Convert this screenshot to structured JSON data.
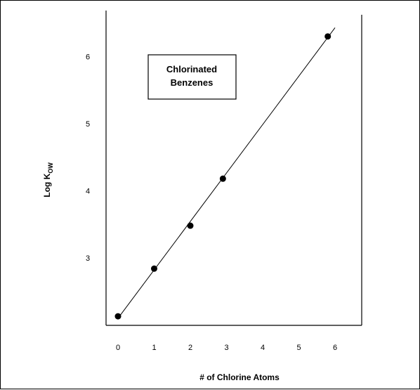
{
  "chart_data": {
    "type": "scatter",
    "xlabel": "# of Chlorine Atoms",
    "ylabel_main": "Log K",
    "ylabel_sub": "OW",
    "annotation": [
      "Chlorinated",
      "Benzenes"
    ],
    "x_ticks": [
      "0",
      "1",
      "2",
      "3",
      "4",
      "5",
      "6"
    ],
    "y_ticks": [
      "3",
      "4",
      "5",
      "6"
    ],
    "xlim": [
      -0.1,
      6.8
    ],
    "ylim": [
      2.1,
      6.5
    ],
    "grid": false,
    "points": [
      {
        "x": 0,
        "y": 2.13
      },
      {
        "x": 1,
        "y": 2.84
      },
      {
        "x": 2,
        "y": 3.48
      },
      {
        "x": 2.9,
        "y": 4.18
      },
      {
        "x": 5.8,
        "y": 6.3
      }
    ],
    "fit_line": {
      "x": [
        0,
        6
      ],
      "y": [
        2.1,
        6.43
      ]
    }
  }
}
